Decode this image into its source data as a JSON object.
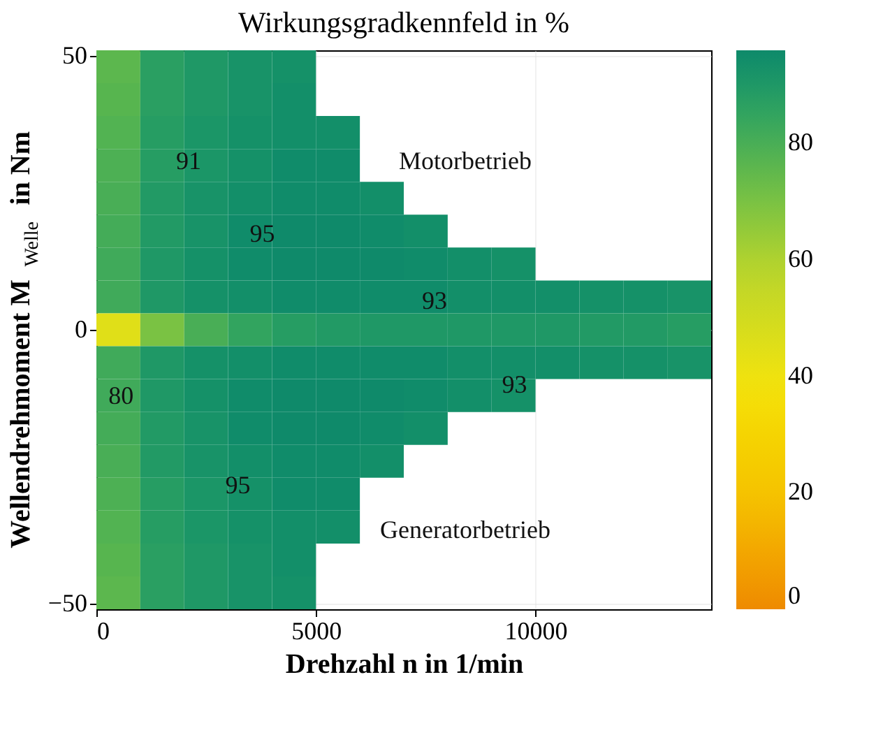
{
  "chart_data": {
    "type": "heatmap",
    "title": "Wirkungsgradkennfeld in %",
    "xlabel": "Drehzahl n in 1/min",
    "ylabel": "Wellendrehmoment M$_{Welle}$ in Nm",
    "x": [
      500,
      1500,
      2500,
      3500,
      4500,
      5500,
      6500,
      7500,
      8500,
      9500,
      10500,
      11500,
      12500,
      13500
    ],
    "cells": [
      [
        76,
        87,
        90,
        92,
        93,
        null,
        null,
        null,
        null,
        null,
        null,
        null,
        null,
        null
      ],
      [
        77,
        87,
        90,
        92,
        94,
        null,
        null,
        null,
        null,
        null,
        null,
        null,
        null,
        null
      ],
      [
        78,
        88,
        91,
        93,
        94,
        94,
        null,
        null,
        null,
        null,
        null,
        null,
        null,
        null
      ],
      [
        79,
        88,
        91,
        93,
        95,
        95,
        null,
        null,
        null,
        null,
        null,
        null,
        null,
        null
      ],
      [
        80,
        89,
        92,
        94,
        95,
        95,
        94,
        null,
        null,
        null,
        null,
        null,
        null,
        null
      ],
      [
        81,
        89,
        92,
        95,
        96,
        96,
        95,
        94,
        null,
        null,
        null,
        null,
        null,
        null
      ],
      [
        82,
        90,
        93,
        95,
        96,
        96,
        96,
        95,
        94,
        93,
        null,
        null,
        null,
        null
      ],
      [
        82,
        90,
        93,
        94,
        95,
        95,
        95,
        95,
        94,
        94,
        94,
        93,
        93,
        92
      ],
      [
        45,
        70,
        80,
        85,
        88,
        89,
        90,
        90,
        90,
        90,
        90,
        89,
        89,
        88
      ],
      [
        82,
        90,
        93,
        94,
        95,
        95,
        95,
        95,
        94,
        94,
        94,
        93,
        93,
        92
      ],
      [
        82,
        90,
        93,
        95,
        96,
        96,
        96,
        95,
        94,
        93,
        null,
        null,
        null,
        null
      ],
      [
        81,
        89,
        92,
        95,
        96,
        96,
        95,
        94,
        null,
        null,
        null,
        null,
        null,
        null
      ],
      [
        80,
        89,
        92,
        94,
        95,
        95,
        94,
        null,
        null,
        null,
        null,
        null,
        null,
        null
      ],
      [
        79,
        88,
        91,
        93,
        95,
        95,
        null,
        null,
        null,
        null,
        null,
        null,
        null,
        null
      ],
      [
        78,
        88,
        91,
        93,
        94,
        94,
        null,
        null,
        null,
        null,
        null,
        null,
        null,
        null
      ],
      [
        77,
        87,
        90,
        92,
        94,
        null,
        null,
        null,
        null,
        null,
        null,
        null,
        null,
        null
      ],
      [
        76,
        87,
        90,
        92,
        93,
        null,
        null,
        null,
        null,
        null,
        null,
        null,
        null,
        null
      ]
    ],
    "xlim": [
      0,
      14000
    ],
    "xticks": [
      0,
      5000,
      10000
    ],
    "ylim": [
      -51,
      51
    ],
    "yticks": [
      -50,
      0,
      50
    ],
    "clim": [
      0,
      96
    ],
    "cticks": [
      0,
      20,
      40,
      60,
      80
    ],
    "grid": true,
    "annotations": [
      "Motorbetrieb",
      "Generatorbetrieb",
      "95",
      "93",
      "91",
      "93",
      "95",
      "80"
    ]
  }
}
